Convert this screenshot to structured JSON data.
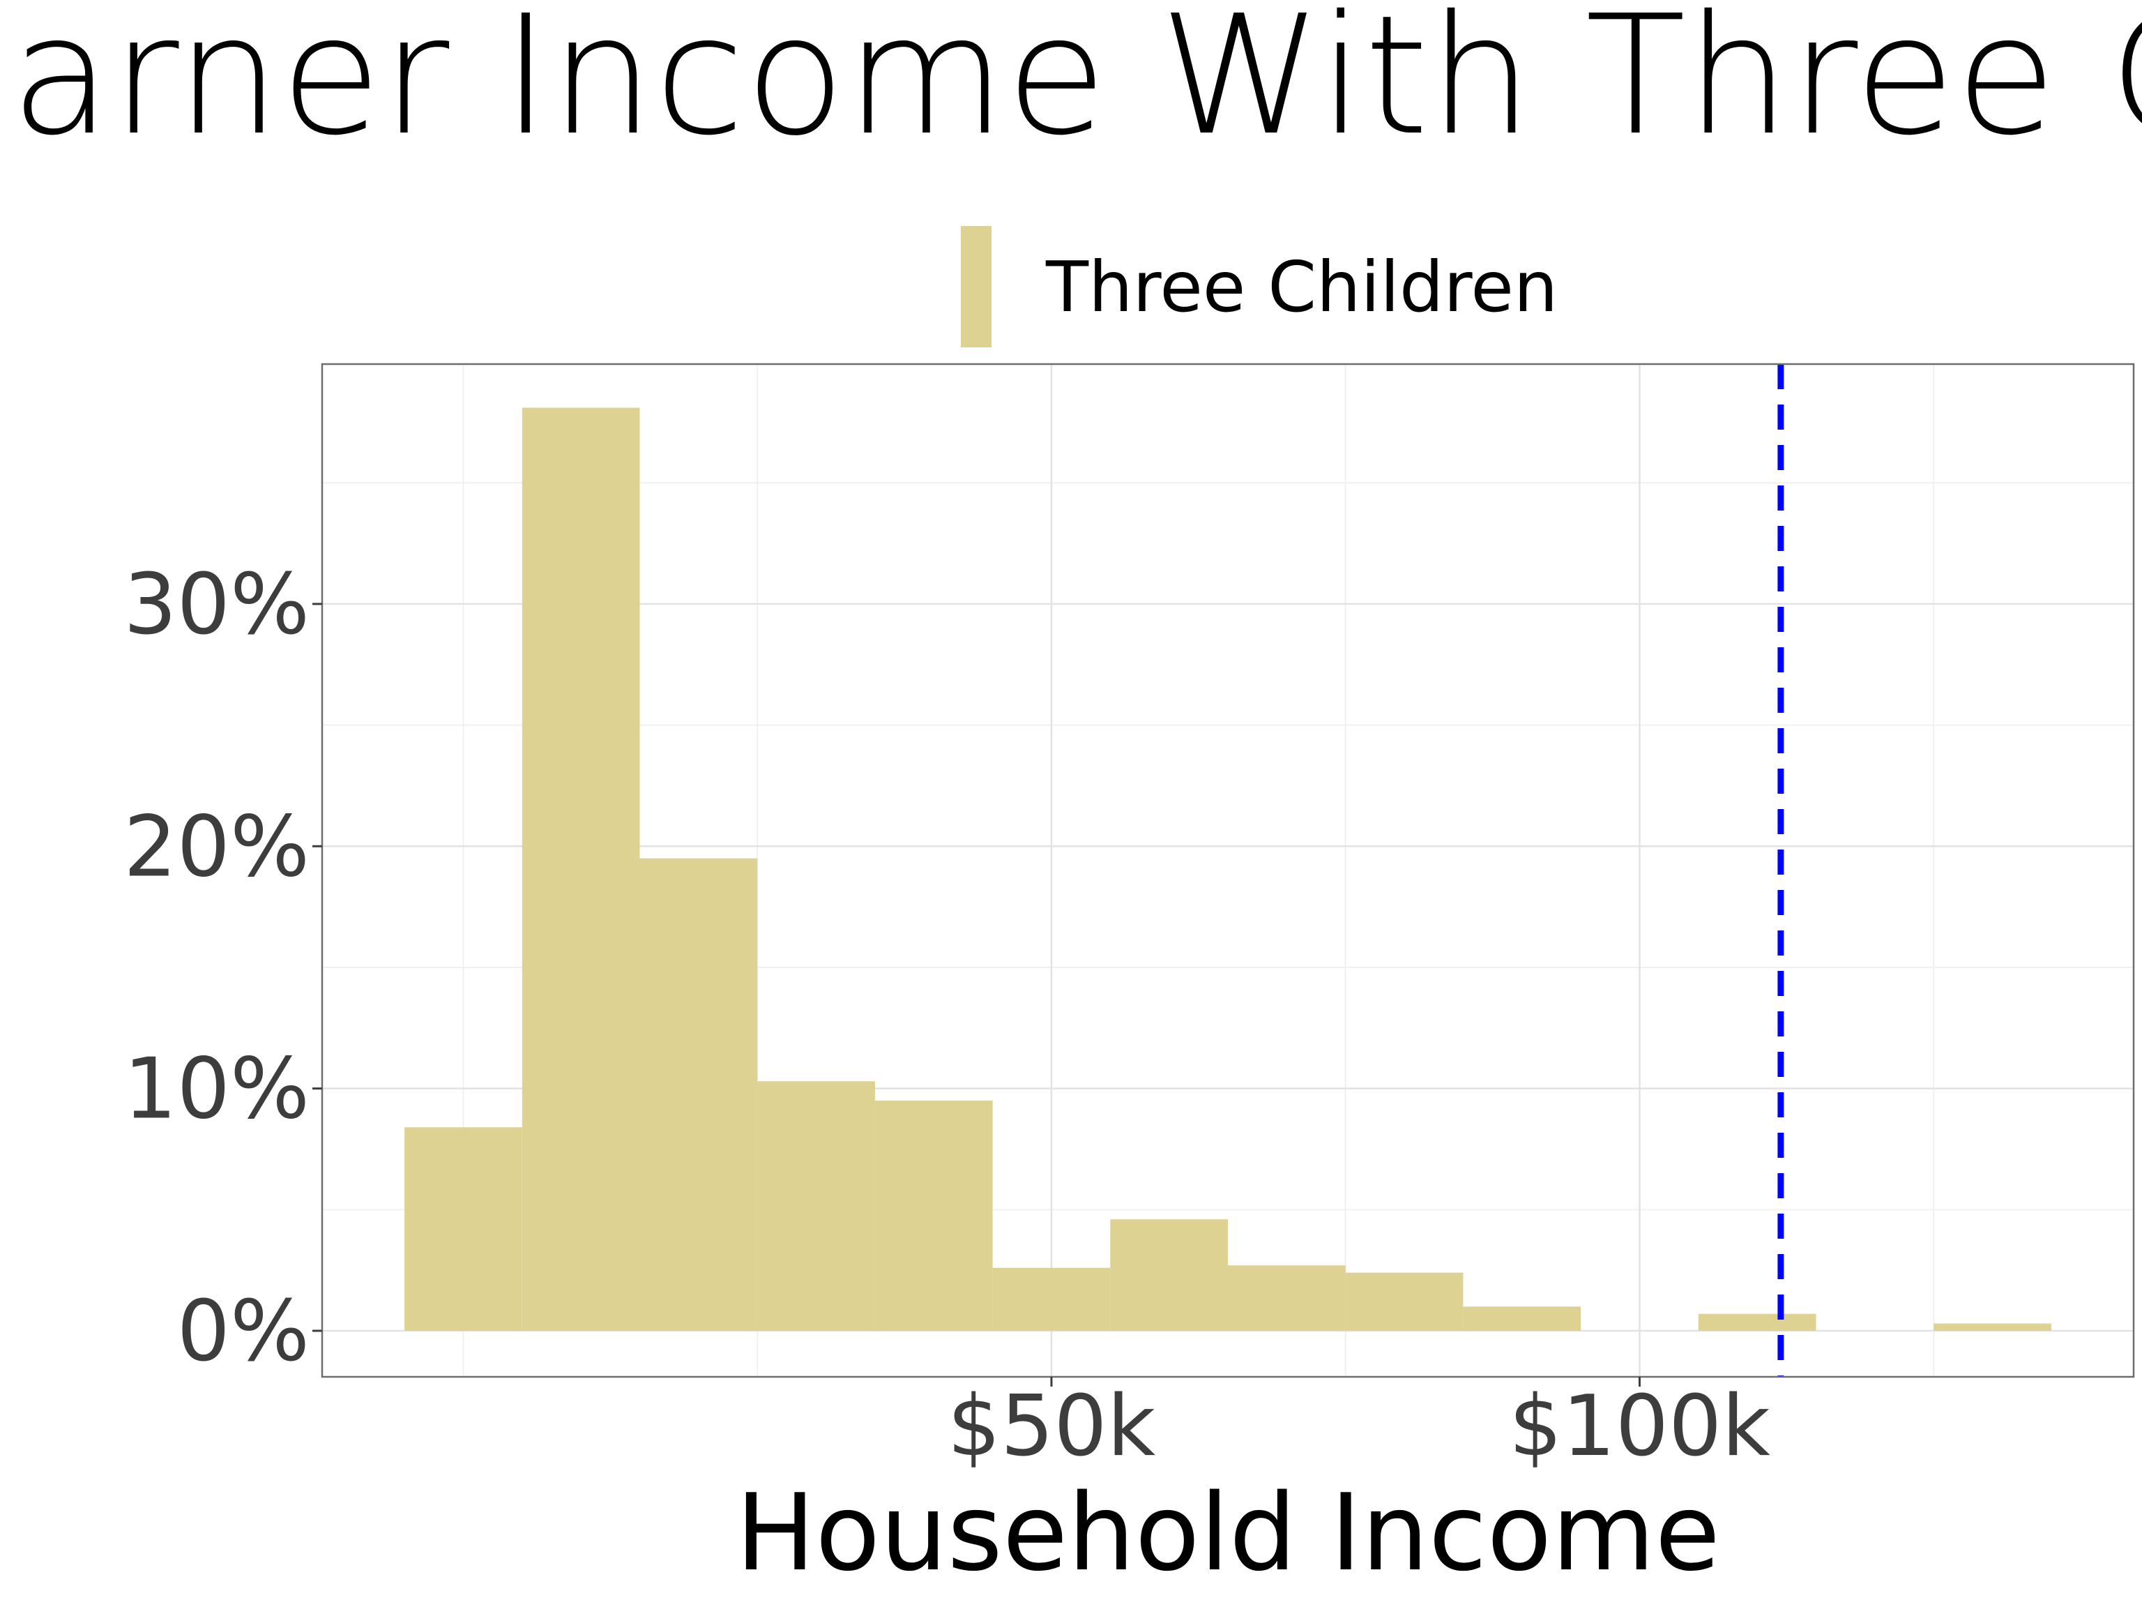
{
  "chart_data": {
    "type": "bar",
    "title": "Single Earner Income With Three Children",
    "xlabel": "Household Income",
    "ylabel": "",
    "legend": {
      "placement": "top",
      "entries": [
        "Three Children"
      ]
    },
    "series": [
      {
        "name": "Three Children",
        "color": "#ddd292",
        "bins": [
          {
            "x0": -5,
            "x1": 5,
            "value": 0.084
          },
          {
            "x0": 5,
            "x1": 15,
            "value": 0.381
          },
          {
            "x0": 15,
            "x1": 25,
            "value": 0.195
          },
          {
            "x0": 25,
            "x1": 35,
            "value": 0.103
          },
          {
            "x0": 35,
            "x1": 45,
            "value": 0.095
          },
          {
            "x0": 45,
            "x1": 55,
            "value": 0.026
          },
          {
            "x0": 55,
            "x1": 65,
            "value": 0.046
          },
          {
            "x0": 65,
            "x1": 75,
            "value": 0.027
          },
          {
            "x0": 75,
            "x1": 85,
            "value": 0.024
          },
          {
            "x0": 85,
            "x1": 95,
            "value": 0.01
          },
          {
            "x0": 95,
            "x1": 105,
            "value": 0.0
          },
          {
            "x0": 105,
            "x1": 115,
            "value": 0.007
          },
          {
            "x0": 115,
            "x1": 125,
            "value": 0.0
          },
          {
            "x0": 125,
            "x1": 135,
            "value": 0.003
          }
        ]
      }
    ],
    "reference_line": {
      "x": 112,
      "color": "#0000ff",
      "style": "dashed"
    },
    "x_unit": "thousand USD",
    "xlim": [
      -12,
      142
    ],
    "ylim": [
      -0.019,
      0.399
    ],
    "x_ticks": [
      {
        "value": 50,
        "label": "$50k"
      },
      {
        "value": 100,
        "label": "$100k"
      }
    ],
    "x_minor_gridlines": [
      0,
      25,
      75,
      125
    ],
    "y_ticks": [
      {
        "value": 0,
        "label": "0%"
      },
      {
        "value": 0.1,
        "label": "10%"
      },
      {
        "value": 0.2,
        "label": "20%"
      },
      {
        "value": 0.3,
        "label": "30%"
      }
    ],
    "y_minor_gridlines": [
      0.05,
      0.15,
      0.25,
      0.35
    ],
    "grid": true
  }
}
